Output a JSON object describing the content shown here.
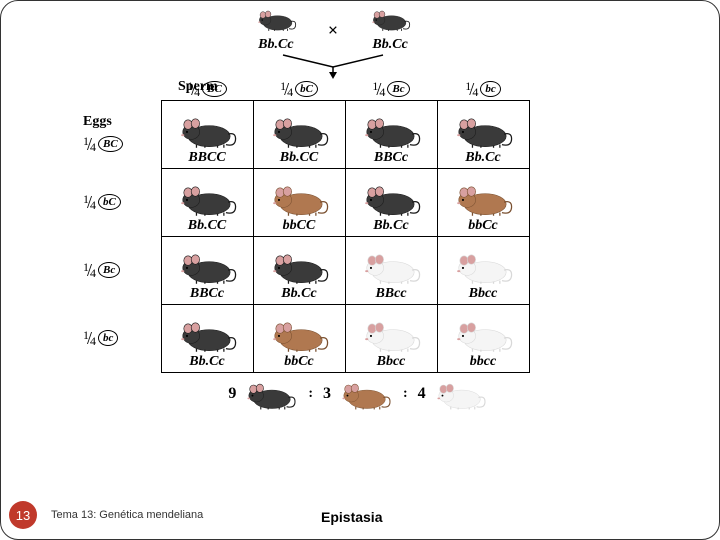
{
  "colors": {
    "black_mouse_body": "#3a3a3a",
    "black_mouse_dark": "#1a1a1a",
    "brown_mouse_body": "#b07850",
    "brown_mouse_dark": "#7a5030",
    "white_mouse_body": "#f5f5f5",
    "white_mouse_dark": "#d8d8d8",
    "ear_pink": "#d8a0a0",
    "slide_badge": "#c0392b"
  },
  "parents": {
    "left": {
      "genotype": "Bb.Cc",
      "phenotype": "black"
    },
    "right": {
      "genotype": "Bb.Cc",
      "phenotype": "black"
    },
    "cross_symbol": "×"
  },
  "axis_labels": {
    "cols": "Sperm",
    "rows": "Eggs"
  },
  "fraction": {
    "num": "1",
    "den": "4"
  },
  "col_alleles": [
    "BC",
    "bC",
    "Bc",
    "bc"
  ],
  "row_alleles": [
    "BC",
    "bC",
    "Bc",
    "bc"
  ],
  "grid": [
    [
      {
        "g": "BBCC",
        "p": "black"
      },
      {
        "g": "Bb.CC",
        "p": "black"
      },
      {
        "g": "BBCc",
        "p": "black"
      },
      {
        "g": "Bb.Cc",
        "p": "black"
      }
    ],
    [
      {
        "g": "Bb.CC",
        "p": "black"
      },
      {
        "g": "bbCC",
        "p": "brown"
      },
      {
        "g": "Bb.Cc",
        "p": "black"
      },
      {
        "g": "bbCc",
        "p": "brown"
      }
    ],
    [
      {
        "g": "BBCc",
        "p": "black"
      },
      {
        "g": "Bb.Cc",
        "p": "black"
      },
      {
        "g": "BBcc",
        "p": "white"
      },
      {
        "g": "Bbcc",
        "p": "white"
      }
    ],
    [
      {
        "g": "Bb.Cc",
        "p": "black"
      },
      {
        "g": "bbCc",
        "p": "brown"
      },
      {
        "g": "Bbcc",
        "p": "white"
      },
      {
        "g": "bbcc",
        "p": "white"
      }
    ]
  ],
  "ratio": [
    {
      "n": "9",
      "p": "black"
    },
    {
      "n": "3",
      "p": "brown"
    },
    {
      "n": "4",
      "p": "white"
    }
  ],
  "ratio_separator": ":",
  "footer": {
    "slide_number": "13",
    "chapter": "Tema 13: Genética mendeliana",
    "topic": "Epistasia"
  },
  "mouse_svg": {
    "width": 60,
    "height": 34
  }
}
